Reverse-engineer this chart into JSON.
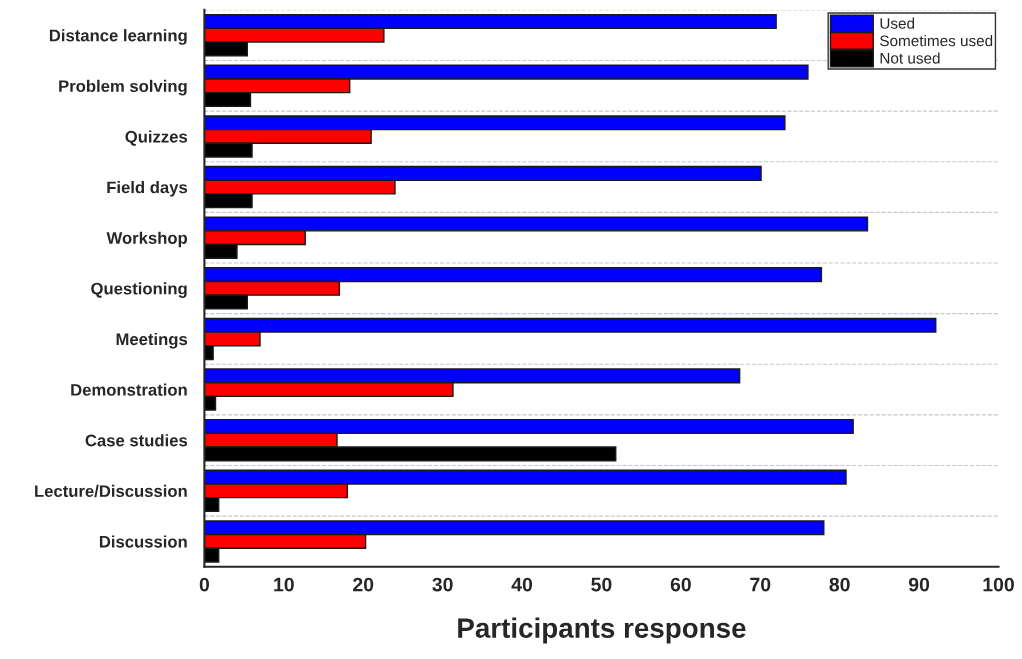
{
  "chart_data": {
    "type": "bar",
    "orientation": "horizontal",
    "xlabel": "Participants response",
    "categories": [
      "Distance learning",
      "Problem solving",
      "Quizzes",
      "Field days",
      "Workshop",
      "Questioning",
      "Meetings",
      "Demonstration",
      "Case studies",
      "Lecture/Discussion",
      "Discussion"
    ],
    "series": [
      {
        "name": "Used",
        "color": "#0000ff",
        "values": [
          72.0,
          76.0,
          73.1,
          70.1,
          83.5,
          77.7,
          92.1,
          67.4,
          81.7,
          80.8,
          78.0
        ]
      },
      {
        "name": "Sometimes used",
        "color": "#ff0000",
        "values": [
          22.6,
          18.3,
          21.0,
          24.0,
          12.7,
          17.0,
          7.0,
          31.3,
          16.7,
          18.0,
          20.3
        ]
      },
      {
        "name": "Not used",
        "color": "#000000",
        "values": [
          5.4,
          5.8,
          6.0,
          6.0,
          4.1,
          5.4,
          1.1,
          1.4,
          51.8,
          1.8,
          1.8
        ]
      }
    ],
    "xlim": [
      0,
      100
    ],
    "xticks": [
      0,
      10,
      20,
      30,
      40,
      50,
      60,
      70,
      80,
      90,
      100
    ],
    "grid": "y",
    "legend": "top right"
  }
}
